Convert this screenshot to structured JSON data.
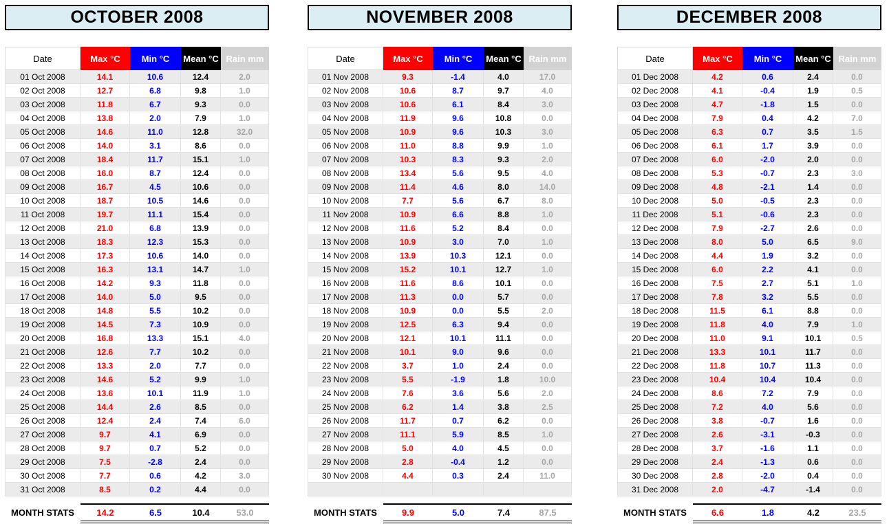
{
  "colors": {
    "title_background": "#daeef3",
    "title_border": "#000000",
    "max_column": "#ff0000",
    "min_column": "#0000ff",
    "mean_column": "#000000",
    "rain_header_background": "#d2d2d2",
    "rain_value_text": "#a6a6a6",
    "row_stripe": "#ebebeb"
  },
  "chart_data": [
    {
      "type": "table",
      "title": "OCTOBER 2008",
      "columns": [
        "Date",
        "Max °C",
        "Min °C",
        "Mean °C",
        "Rain mm"
      ],
      "rows": [
        [
          "01 Oct 2008",
          "14.1",
          "10.6",
          "12.4",
          "2.0"
        ],
        [
          "02 Oct 2008",
          "12.7",
          "6.8",
          "9.8",
          "1.0"
        ],
        [
          "03 Oct 2008",
          "11.8",
          "6.7",
          "9.3",
          "0.0"
        ],
        [
          "04 Oct 2008",
          "13.8",
          "2.0",
          "7.9",
          "1.0"
        ],
        [
          "05 Oct 2008",
          "14.6",
          "11.0",
          "12.8",
          "32.0"
        ],
        [
          "06 Oct 2008",
          "14.0",
          "3.1",
          "8.6",
          "0.0"
        ],
        [
          "07 Oct 2008",
          "18.4",
          "11.7",
          "15.1",
          "1.0"
        ],
        [
          "08 Oct 2008",
          "16.0",
          "8.7",
          "12.4",
          "0.0"
        ],
        [
          "09 Oct 2008",
          "16.7",
          "4.5",
          "10.6",
          "0.0"
        ],
        [
          "10 Oct 2008",
          "18.7",
          "10.5",
          "14.6",
          "0.0"
        ],
        [
          "11 Oct 2008",
          "19.7",
          "11.1",
          "15.4",
          "0.0"
        ],
        [
          "12 Oct 2008",
          "21.0",
          "6.8",
          "13.9",
          "0.0"
        ],
        [
          "13 Oct 2008",
          "18.3",
          "12.3",
          "15.3",
          "0.0"
        ],
        [
          "14 Oct 2008",
          "17.3",
          "10.6",
          "14.0",
          "0.0"
        ],
        [
          "15 Oct 2008",
          "16.3",
          "13.1",
          "14.7",
          "1.0"
        ],
        [
          "16 Oct 2008",
          "14.2",
          "9.3",
          "11.8",
          "0.0"
        ],
        [
          "17 Oct 2008",
          "14.0",
          "5.0",
          "9.5",
          "0.0"
        ],
        [
          "18 Oct 2008",
          "14.8",
          "5.5",
          "10.2",
          "0.0"
        ],
        [
          "19 Oct 2008",
          "14.5",
          "7.3",
          "10.9",
          "0.0"
        ],
        [
          "20 Oct 2008",
          "16.8",
          "13.3",
          "15.1",
          "4.0"
        ],
        [
          "21 Oct 2008",
          "12.6",
          "7.7",
          "10.2",
          "0.0"
        ],
        [
          "22 Oct 2008",
          "13.3",
          "2.0",
          "7.7",
          "0.0"
        ],
        [
          "23 Oct 2008",
          "14.6",
          "5.2",
          "9.9",
          "1.0"
        ],
        [
          "24 Oct 2008",
          "13.6",
          "10.1",
          "11.9",
          "1.0"
        ],
        [
          "25 Oct 2008",
          "14.4",
          "2.6",
          "8.5",
          "0.0"
        ],
        [
          "26 Oct 2008",
          "12.4",
          "2.4",
          "7.4",
          "6.0"
        ],
        [
          "27 Oct 2008",
          "9.7",
          "4.1",
          "6.9",
          "0.0"
        ],
        [
          "28 Oct 2008",
          "9.7",
          "0.7",
          "5.2",
          "0.0"
        ],
        [
          "29 Oct 2008",
          "7.5",
          "-2.8",
          "2.4",
          "0.0"
        ],
        [
          "30 Oct 2008",
          "7.7",
          "0.6",
          "4.2",
          "3.0"
        ],
        [
          "31 Oct 2008",
          "8.5",
          "0.2",
          "4.4",
          "0.0"
        ]
      ],
      "stats_label": "MONTH STATS",
      "stats": [
        "14.2",
        "6.5",
        "10.4",
        "53.0"
      ]
    },
    {
      "type": "table",
      "title": "NOVEMBER 2008",
      "columns": [
        "Date",
        "Max °C",
        "Min °C",
        "Mean °C",
        "Rain mm"
      ],
      "rows": [
        [
          "01 Nov 2008",
          "9.3",
          "-1.4",
          "4.0",
          "17.0"
        ],
        [
          "02 Nov 2008",
          "10.6",
          "8.7",
          "9.7",
          "4.0"
        ],
        [
          "03 Nov 2008",
          "10.6",
          "6.1",
          "8.4",
          "3.0"
        ],
        [
          "04 Nov 2008",
          "11.9",
          "9.6",
          "10.8",
          "0.0"
        ],
        [
          "05 Nov 2008",
          "10.9",
          "9.6",
          "10.3",
          "3.0"
        ],
        [
          "06 Nov 2008",
          "11.0",
          "8.8",
          "9.9",
          "1.0"
        ],
        [
          "07 Nov 2008",
          "10.3",
          "8.3",
          "9.3",
          "2.0"
        ],
        [
          "08 Nov 2008",
          "13.4",
          "5.6",
          "9.5",
          "4.0"
        ],
        [
          "09 Nov 2008",
          "11.4",
          "4.6",
          "8.0",
          "14.0"
        ],
        [
          "10 Nov 2008",
          "7.7",
          "5.6",
          "6.7",
          "8.0"
        ],
        [
          "11 Nov 2008",
          "10.9",
          "6.6",
          "8.8",
          "1.0"
        ],
        [
          "12 Nov 2008",
          "11.6",
          "5.2",
          "8.4",
          "0.0"
        ],
        [
          "13 Nov 2008",
          "10.9",
          "3.0",
          "7.0",
          "1.0"
        ],
        [
          "14 Nov 2008",
          "13.9",
          "10.3",
          "12.1",
          "0.0"
        ],
        [
          "15 Nov 2008",
          "15.2",
          "10.1",
          "12.7",
          "1.0"
        ],
        [
          "16 Nov 2008",
          "11.6",
          "8.6",
          "10.1",
          "0.0"
        ],
        [
          "17 Nov 2008",
          "11.3",
          "0.0",
          "5.7",
          "0.0"
        ],
        [
          "18 Nov 2008",
          "10.9",
          "0.0",
          "5.5",
          "2.0"
        ],
        [
          "19 Nov 2008",
          "12.5",
          "6.3",
          "9.4",
          "0.0"
        ],
        [
          "20 Nov 2008",
          "12.1",
          "10.1",
          "11.1",
          "0.0"
        ],
        [
          "21 Nov 2008",
          "10.1",
          "9.0",
          "9.6",
          "0.0"
        ],
        [
          "22 Nov 2008",
          "3.7",
          "1.0",
          "2.4",
          "0.0"
        ],
        [
          "23 Nov 2008",
          "5.5",
          "-1.9",
          "1.8",
          "10.0"
        ],
        [
          "24 Nov 2008",
          "7.6",
          "3.6",
          "5.6",
          "2.0"
        ],
        [
          "25 Nov 2008",
          "6.2",
          "1.4",
          "3.8",
          "2.5"
        ],
        [
          "26 Nov 2008",
          "11.7",
          "0.7",
          "6.2",
          "0.0"
        ],
        [
          "27 Nov 2008",
          "11.1",
          "5.9",
          "8.5",
          "1.0"
        ],
        [
          "28 Nov 2008",
          "5.0",
          "4.0",
          "4.5",
          "0.0"
        ],
        [
          "29 Nov 2008",
          "2.8",
          "-0.4",
          "1.2",
          "0.0"
        ],
        [
          "30 Nov 2008",
          "4.4",
          "0.3",
          "2.4",
          "11.0"
        ],
        [
          "",
          "",
          "",
          "",
          ""
        ]
      ],
      "stats_label": "MONTH STATS",
      "stats": [
        "9.9",
        "5.0",
        "7.4",
        "87.5"
      ]
    },
    {
      "type": "table",
      "title": "DECEMBER 2008",
      "columns": [
        "Date",
        "Max °C",
        "Min °C",
        "Mean °C",
        "Rain mm"
      ],
      "rows": [
        [
          "01 Dec 2008",
          "4.2",
          "0.6",
          "2.4",
          "0.0"
        ],
        [
          "02 Dec 2008",
          "4.1",
          "-0.4",
          "1.9",
          "0.5"
        ],
        [
          "03 Dec 2008",
          "4.7",
          "-1.8",
          "1.5",
          "0.0"
        ],
        [
          "04 Dec 2008",
          "7.9",
          "0.4",
          "4.2",
          "7.0"
        ],
        [
          "05 Dec 2008",
          "6.3",
          "0.7",
          "3.5",
          "1.5"
        ],
        [
          "06 Dec 2008",
          "6.1",
          "1.7",
          "3.9",
          "0.0"
        ],
        [
          "07 Dec 2008",
          "6.0",
          "-2.0",
          "2.0",
          "0.0"
        ],
        [
          "08 Dec 2008",
          "5.3",
          "-0.7",
          "2.3",
          "3.0"
        ],
        [
          "09 Dec 2008",
          "4.8",
          "-2.1",
          "1.4",
          "0.0"
        ],
        [
          "10 Dec 2008",
          "5.0",
          "-0.5",
          "2.3",
          "0.0"
        ],
        [
          "11 Dec 2008",
          "5.1",
          "-0.6",
          "2.3",
          "0.0"
        ],
        [
          "12 Dec 2008",
          "7.9",
          "-2.7",
          "2.6",
          "0.0"
        ],
        [
          "13 Dec 2008",
          "8.0",
          "5.0",
          "6.5",
          "9.0"
        ],
        [
          "14 Dec 2008",
          "4.4",
          "1.9",
          "3.2",
          "0.0"
        ],
        [
          "15 Dec 2008",
          "6.0",
          "2.2",
          "4.1",
          "0.0"
        ],
        [
          "16 Dec 2008",
          "7.5",
          "2.7",
          "5.1",
          "1.0"
        ],
        [
          "17 Dec 2008",
          "7.8",
          "3.2",
          "5.5",
          "0.0"
        ],
        [
          "18 Dec 2008",
          "11.5",
          "6.1",
          "8.8",
          "0.0"
        ],
        [
          "19 Dec 2008",
          "11.8",
          "4.0",
          "7.9",
          "1.0"
        ],
        [
          "20 Dec 2008",
          "11.0",
          "9.1",
          "10.1",
          "0.5"
        ],
        [
          "21 Dec 2008",
          "13.3",
          "10.1",
          "11.7",
          "0.0"
        ],
        [
          "22 Dec 2008",
          "11.8",
          "10.7",
          "11.3",
          "0.0"
        ],
        [
          "23 Dec 2008",
          "10.4",
          "10.4",
          "10.4",
          "0.0"
        ],
        [
          "24 Dec 2008",
          "8.6",
          "7.2",
          "7.9",
          "0.0"
        ],
        [
          "25 Dec 2008",
          "7.2",
          "4.0",
          "5.6",
          "0.0"
        ],
        [
          "26 Dec 2008",
          "3.8",
          "-0.7",
          "1.6",
          "0.0"
        ],
        [
          "27 Dec 2008",
          "2.6",
          "-3.1",
          "-0.3",
          "0.0"
        ],
        [
          "28 Dec 2008",
          "3.7",
          "-1.6",
          "1.1",
          "0.0"
        ],
        [
          "29 Dec 2008",
          "2.4",
          "-1.3",
          "0.6",
          "0.0"
        ],
        [
          "30 Dec 2008",
          "2.8",
          "-2.0",
          "0.4",
          "0.0"
        ],
        [
          "31 Dec 2008",
          "2.0",
          "-4.7",
          "-1.4",
          "0.0"
        ]
      ],
      "stats_label": "MONTH STATS",
      "stats": [
        "6.6",
        "1.8",
        "4.2",
        "23.5"
      ]
    }
  ]
}
